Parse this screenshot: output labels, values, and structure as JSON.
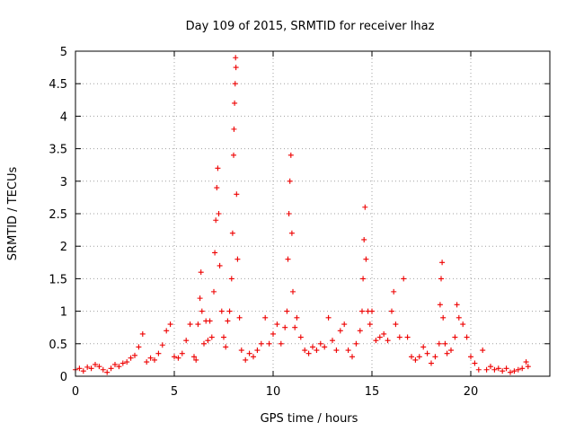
{
  "chart_data": {
    "type": "scatter",
    "title": "Day 109 of 2015, SRMTID for receiver lhaz",
    "xlabel": "GPS time / hours",
    "ylabel": "SRMTID / TECUs",
    "xlim": [
      0,
      24
    ],
    "ylim": [
      0,
      5
    ],
    "x_ticks": [
      "0",
      "5",
      "10",
      "15",
      "20"
    ],
    "x_tick_values": [
      0,
      5,
      10,
      15,
      20
    ],
    "y_ticks": [
      "0",
      "0.5",
      "1",
      "1.5",
      "2",
      "2.5",
      "3",
      "3.5",
      "4",
      "4.5",
      "5"
    ],
    "y_tick_values": [
      0,
      0.5,
      1,
      1.5,
      2,
      2.5,
      3,
      3.5,
      4,
      4.5,
      5
    ],
    "grid": true,
    "marker": "+",
    "color": "#ee0000",
    "series": [
      {
        "name": "SRMTID",
        "points": [
          [
            0.0,
            0.1
          ],
          [
            0.2,
            0.12
          ],
          [
            0.4,
            0.08
          ],
          [
            0.6,
            0.14
          ],
          [
            0.8,
            0.12
          ],
          [
            1.0,
            0.18
          ],
          [
            1.2,
            0.15
          ],
          [
            1.4,
            0.1
          ],
          [
            1.6,
            0.06
          ],
          [
            1.8,
            0.12
          ],
          [
            2.0,
            0.18
          ],
          [
            2.2,
            0.15
          ],
          [
            2.4,
            0.2
          ],
          [
            2.6,
            0.22
          ],
          [
            2.8,
            0.28
          ],
          [
            3.0,
            0.32
          ],
          [
            3.2,
            0.45
          ],
          [
            3.4,
            0.65
          ],
          [
            3.6,
            0.22
          ],
          [
            3.8,
            0.28
          ],
          [
            4.0,
            0.25
          ],
          [
            4.2,
            0.35
          ],
          [
            4.4,
            0.48
          ],
          [
            4.6,
            0.7
          ],
          [
            4.8,
            0.8
          ],
          [
            5.0,
            0.3
          ],
          [
            5.2,
            0.28
          ],
          [
            5.4,
            0.35
          ],
          [
            5.6,
            0.55
          ],
          [
            5.8,
            0.8
          ],
          [
            6.0,
            0.3
          ],
          [
            6.1,
            0.25
          ],
          [
            6.2,
            0.8
          ],
          [
            6.3,
            1.2
          ],
          [
            6.35,
            1.6
          ],
          [
            6.4,
            1.0
          ],
          [
            6.5,
            0.5
          ],
          [
            6.6,
            0.85
          ],
          [
            6.7,
            0.55
          ],
          [
            6.8,
            0.85
          ],
          [
            6.9,
            0.6
          ],
          [
            7.0,
            1.3
          ],
          [
            7.05,
            1.9
          ],
          [
            7.1,
            2.4
          ],
          [
            7.15,
            2.9
          ],
          [
            7.2,
            3.2
          ],
          [
            7.25,
            2.5
          ],
          [
            7.3,
            1.7
          ],
          [
            7.4,
            1.0
          ],
          [
            7.5,
            0.6
          ],
          [
            7.6,
            0.45
          ],
          [
            7.7,
            0.85
          ],
          [
            7.8,
            1.0
          ],
          [
            7.9,
            1.5
          ],
          [
            7.95,
            2.2
          ],
          [
            8.0,
            3.4
          ],
          [
            8.02,
            3.8
          ],
          [
            8.05,
            4.2
          ],
          [
            8.08,
            4.5
          ],
          [
            8.1,
            4.9
          ],
          [
            8.12,
            4.75
          ],
          [
            8.15,
            2.8
          ],
          [
            8.2,
            1.8
          ],
          [
            8.3,
            0.9
          ],
          [
            8.4,
            0.4
          ],
          [
            8.6,
            0.25
          ],
          [
            8.8,
            0.35
          ],
          [
            9.0,
            0.3
          ],
          [
            9.2,
            0.4
          ],
          [
            9.4,
            0.5
          ],
          [
            9.6,
            0.9
          ],
          [
            9.8,
            0.5
          ],
          [
            10.0,
            0.65
          ],
          [
            10.2,
            0.8
          ],
          [
            10.4,
            0.5
          ],
          [
            10.6,
            0.75
          ],
          [
            10.7,
            1.0
          ],
          [
            10.75,
            1.8
          ],
          [
            10.8,
            2.5
          ],
          [
            10.85,
            3.0
          ],
          [
            10.9,
            3.4
          ],
          [
            10.95,
            2.2
          ],
          [
            11.0,
            1.3
          ],
          [
            11.1,
            0.75
          ],
          [
            11.2,
            0.9
          ],
          [
            11.4,
            0.6
          ],
          [
            11.6,
            0.4
          ],
          [
            11.8,
            0.35
          ],
          [
            12.0,
            0.45
          ],
          [
            12.2,
            0.4
          ],
          [
            12.4,
            0.5
          ],
          [
            12.6,
            0.45
          ],
          [
            12.8,
            0.9
          ],
          [
            13.0,
            0.55
          ],
          [
            13.2,
            0.4
          ],
          [
            13.4,
            0.7
          ],
          [
            13.6,
            0.8
          ],
          [
            13.8,
            0.4
          ],
          [
            14.0,
            0.3
          ],
          [
            14.2,
            0.5
          ],
          [
            14.4,
            0.7
          ],
          [
            14.5,
            1.0
          ],
          [
            14.55,
            1.5
          ],
          [
            14.6,
            2.1
          ],
          [
            14.65,
            2.6
          ],
          [
            14.7,
            1.8
          ],
          [
            14.8,
            1.0
          ],
          [
            14.9,
            0.8
          ],
          [
            15.0,
            1.0
          ],
          [
            15.2,
            0.55
          ],
          [
            15.4,
            0.6
          ],
          [
            15.6,
            0.65
          ],
          [
            15.8,
            0.55
          ],
          [
            16.0,
            1.0
          ],
          [
            16.1,
            1.3
          ],
          [
            16.2,
            0.8
          ],
          [
            16.4,
            0.6
          ],
          [
            16.6,
            1.5
          ],
          [
            16.8,
            0.6
          ],
          [
            17.0,
            0.3
          ],
          [
            17.2,
            0.25
          ],
          [
            17.4,
            0.3
          ],
          [
            17.6,
            0.45
          ],
          [
            17.8,
            0.35
          ],
          [
            18.0,
            0.2
          ],
          [
            18.2,
            0.3
          ],
          [
            18.4,
            0.5
          ],
          [
            18.45,
            1.1
          ],
          [
            18.5,
            1.5
          ],
          [
            18.55,
            1.75
          ],
          [
            18.6,
            0.9
          ],
          [
            18.7,
            0.5
          ],
          [
            18.8,
            0.35
          ],
          [
            19.0,
            0.4
          ],
          [
            19.2,
            0.6
          ],
          [
            19.3,
            1.1
          ],
          [
            19.4,
            0.9
          ],
          [
            19.6,
            0.8
          ],
          [
            19.8,
            0.6
          ],
          [
            20.0,
            0.3
          ],
          [
            20.2,
            0.2
          ],
          [
            20.4,
            0.1
          ],
          [
            20.6,
            0.4
          ],
          [
            20.8,
            0.1
          ],
          [
            21.0,
            0.15
          ],
          [
            21.2,
            0.1
          ],
          [
            21.4,
            0.12
          ],
          [
            21.6,
            0.08
          ],
          [
            21.8,
            0.12
          ],
          [
            22.0,
            0.06
          ],
          [
            22.2,
            0.08
          ],
          [
            22.4,
            0.1
          ],
          [
            22.6,
            0.12
          ],
          [
            22.8,
            0.22
          ],
          [
            22.9,
            0.15
          ]
        ]
      }
    ]
  }
}
